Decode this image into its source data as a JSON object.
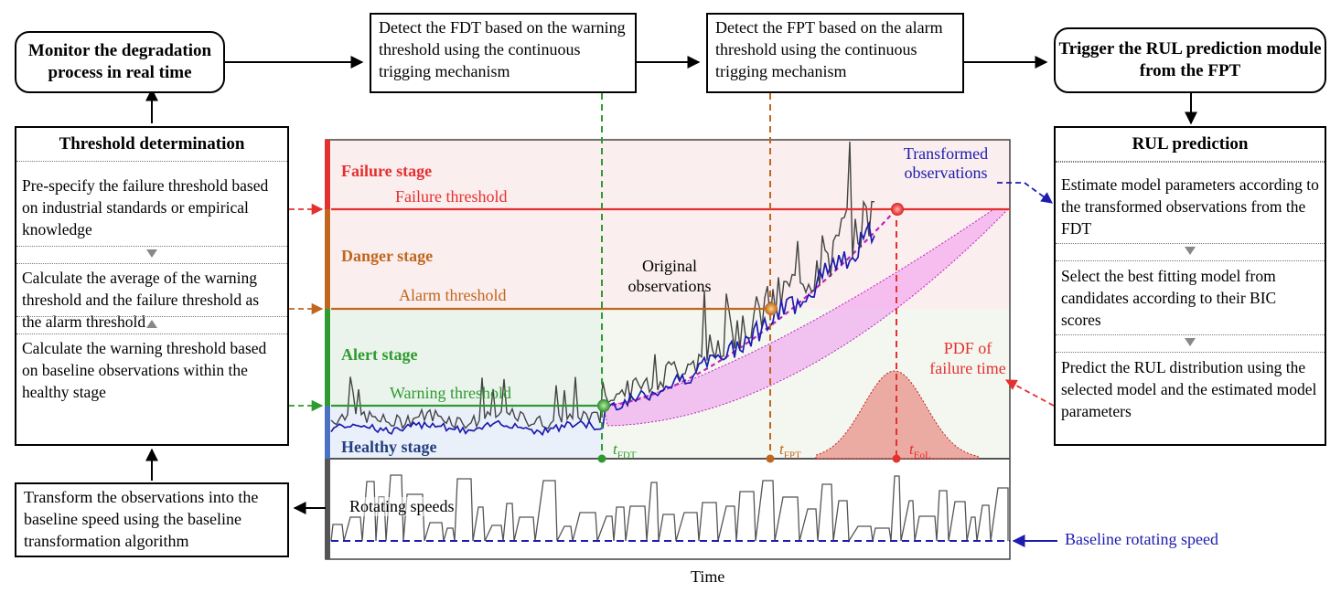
{
  "top": {
    "monitor": "Monitor the degradation process in real time",
    "detect_fdt": "Detect the FDT based on the warning threshold using the continuous trigging mechanism",
    "detect_fpt": "Detect the FPT based on the alarm threshold using the continuous trigging mechanism",
    "trigger": "Trigger the RUL prediction module from the FPT"
  },
  "threshold_panel": {
    "title": "Threshold determination",
    "items": [
      "Pre-specify the failure threshold based on industrial standards or empirical knowledge",
      "Calculate the average of the warning threshold and the failure threshold as the alarm threshold",
      "Calculate the warning threshold based on baseline observations within the  healthy stage"
    ]
  },
  "transform_box": "Transform the observations into the baseline speed using the baseline transformation algorithm",
  "rul_panel": {
    "title": "RUL prediction",
    "items": [
      "Estimate model parameters according to the transformed observations from the FDT",
      "Select the best fitting model from candidates according to their BIC scores",
      "Predict the RUL distribution using the selected model and the estimated model parameters"
    ]
  },
  "stages": {
    "failure": "Failure stage",
    "danger": "Danger stage",
    "alert": "Alert stage",
    "healthy": "Healthy stage"
  },
  "thresholds": {
    "failure": "Failure threshold",
    "alarm": "Alarm threshold",
    "warning": "Warning threshold"
  },
  "annotations": {
    "transformed": "Transformed observations",
    "original": "Original observations",
    "pdf": "PDF of failure time",
    "rotating": "Rotating speeds",
    "baseline": "Baseline rotating speed"
  },
  "time_marks": {
    "t": "t",
    "fdt": "FDT",
    "fpt": "FPT",
    "eol": "EoL"
  },
  "xlabel": "Time",
  "colors": {
    "failure": "#e53030",
    "danger": "#c0661e",
    "alert": "#2f9a2f",
    "healthy": "#4a72c4",
    "transformed": "#1c1cae",
    "envelope": "#f080f0",
    "pdf_fill": "#e89088",
    "original": "#444444"
  }
}
